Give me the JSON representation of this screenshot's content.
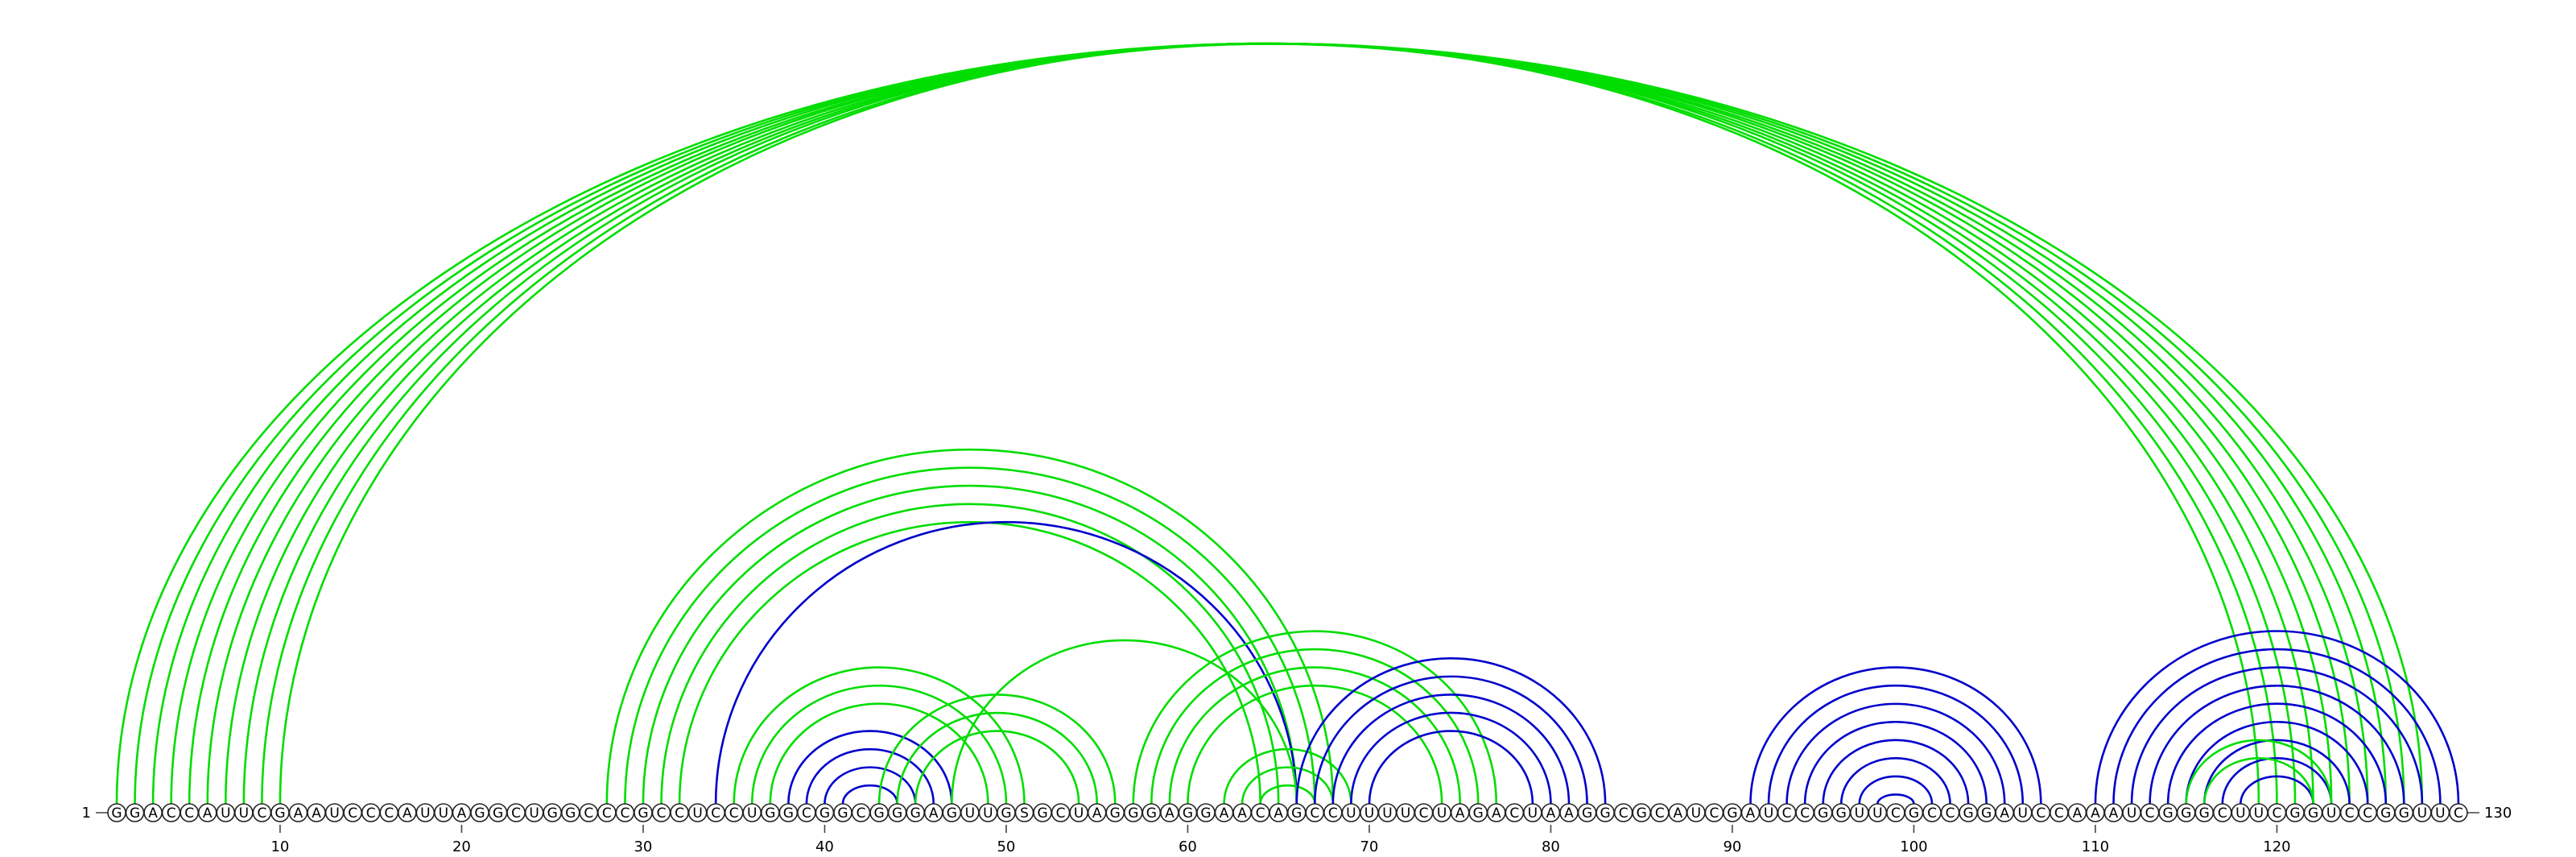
{
  "diagram": {
    "type": "rna-arc-diagram",
    "sequence": "GGACCAUUCGAAUCCCAUUAGGCUGGCCCGCCUCCUGGCGGCGGGAGUUGSGCUAGGGAGGAACAGCCUUUUCUAGACUAAGGCGCAUCGAUCCGGUUCGCCGGAUCCAAAUCGGGCUUCGGUCCGGUUC",
    "length": 130,
    "start_label": "1",
    "end_label": "130",
    "tick_positions": [
      10,
      20,
      30,
      40,
      50,
      60,
      70,
      80,
      90,
      100,
      110,
      120
    ],
    "tick_labels": [
      "10",
      "20",
      "30",
      "40",
      "50",
      "60",
      "70",
      "80",
      "90",
      "100",
      "110",
      "120"
    ],
    "colors": {
      "green": "#00dd00",
      "blue": "#0000cc",
      "backbone": "#444444"
    },
    "arc_groups": [
      {
        "color": "green",
        "pairs": [
          [
            1,
            128
          ],
          [
            2,
            127
          ],
          [
            3,
            126
          ],
          [
            4,
            125
          ],
          [
            5,
            124
          ],
          [
            6,
            123
          ],
          [
            7,
            122
          ],
          [
            8,
            121
          ],
          [
            9,
            120
          ],
          [
            10,
            119
          ]
        ]
      },
      {
        "color": "green",
        "pairs": [
          [
            28,
            68
          ],
          [
            29,
            67
          ],
          [
            30,
            66
          ],
          [
            31,
            65
          ],
          [
            32,
            64
          ]
        ]
      },
      {
        "color": "blue",
        "pairs": [
          [
            34,
            66
          ]
        ]
      },
      {
        "color": "green",
        "pairs": [
          [
            35,
            51
          ],
          [
            36,
            50
          ],
          [
            37,
            49
          ]
        ]
      },
      {
        "color": "blue",
        "pairs": [
          [
            38,
            47
          ],
          [
            39,
            46
          ],
          [
            40,
            45
          ],
          [
            41,
            44
          ]
        ]
      },
      {
        "color": "green",
        "pairs": [
          [
            43,
            56
          ],
          [
            44,
            55
          ],
          [
            45,
            54
          ]
        ]
      },
      {
        "color": "green",
        "pairs": [
          [
            47,
            66
          ]
        ]
      },
      {
        "color": "green",
        "pairs": [
          [
            57,
            77
          ],
          [
            58,
            76
          ],
          [
            59,
            75
          ],
          [
            60,
            74
          ]
        ]
      },
      {
        "color": "green",
        "pairs": [
          [
            62,
            69
          ],
          [
            63,
            68
          ],
          [
            64,
            67
          ]
        ]
      },
      {
        "color": "blue",
        "pairs": [
          [
            66,
            83
          ],
          [
            67,
            82
          ],
          [
            68,
            81
          ],
          [
            69,
            80
          ],
          [
            70,
            79
          ]
        ]
      },
      {
        "color": "blue",
        "pairs": [
          [
            91,
            107
          ],
          [
            92,
            106
          ],
          [
            93,
            105
          ],
          [
            94,
            104
          ],
          [
            95,
            103
          ],
          [
            96,
            102
          ],
          [
            97,
            101
          ],
          [
            98,
            100
          ]
        ]
      },
      {
        "color": "blue",
        "pairs": [
          [
            110,
            130
          ],
          [
            111,
            129
          ],
          [
            112,
            128
          ],
          [
            113,
            127
          ],
          [
            114,
            126
          ],
          [
            115,
            125
          ],
          [
            116,
            124
          ],
          [
            117,
            123
          ],
          [
            118,
            122
          ]
        ]
      },
      {
        "color": "green",
        "pairs": [
          [
            115,
            123
          ],
          [
            116,
            122
          ]
        ]
      }
    ]
  }
}
